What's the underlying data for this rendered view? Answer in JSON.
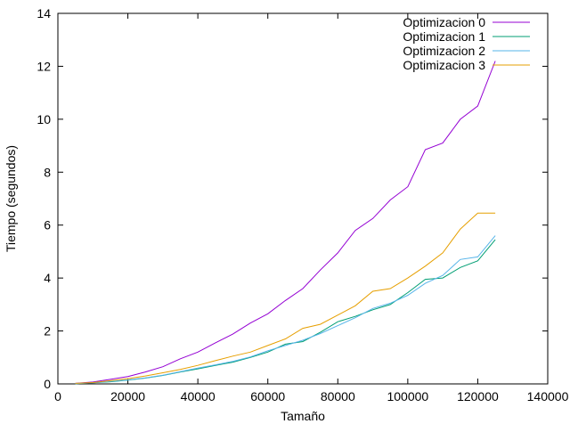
{
  "chart_data": {
    "type": "line",
    "xlabel": "Tamaño",
    "ylabel": "Tiempo (segundos)",
    "xlim": [
      0,
      140000
    ],
    "ylim": [
      0,
      14
    ],
    "x_ticks": [
      0,
      20000,
      40000,
      60000,
      80000,
      100000,
      120000,
      140000
    ],
    "y_ticks": [
      0,
      2,
      4,
      6,
      8,
      10,
      12,
      14
    ],
    "grid": false,
    "legend_position": "top-right",
    "x": [
      5000,
      10000,
      15000,
      20000,
      25000,
      30000,
      35000,
      40000,
      45000,
      50000,
      55000,
      60000,
      65000,
      70000,
      75000,
      80000,
      85000,
      90000,
      95000,
      100000,
      105000,
      110000,
      115000,
      120000,
      125000
    ],
    "series": [
      {
        "name": "Optimizacion 0",
        "color": "#9400d3",
        "values": [
          0.02,
          0.07,
          0.17,
          0.28,
          0.45,
          0.65,
          0.95,
          1.2,
          1.55,
          1.88,
          2.3,
          2.65,
          3.15,
          3.6,
          4.3,
          4.95,
          5.8,
          6.25,
          6.95,
          7.45,
          8.85,
          9.1,
          10.0,
          10.5,
          12.2
        ]
      },
      {
        "name": "Optimizacion 1",
        "color": "#009e73",
        "values": [
          0.01,
          0.04,
          0.08,
          0.14,
          0.22,
          0.32,
          0.45,
          0.57,
          0.7,
          0.82,
          1.0,
          1.2,
          1.5,
          1.6,
          1.95,
          2.35,
          2.55,
          2.8,
          3.0,
          3.45,
          3.95,
          4.0,
          4.4,
          4.65,
          5.45
        ]
      },
      {
        "name": "Optimizacion 2",
        "color": "#56b4e9",
        "values": [
          0.01,
          0.04,
          0.09,
          0.15,
          0.23,
          0.33,
          0.46,
          0.6,
          0.72,
          0.85,
          1.02,
          1.25,
          1.45,
          1.65,
          1.9,
          2.2,
          2.5,
          2.85,
          3.05,
          3.35,
          3.8,
          4.1,
          4.7,
          4.8,
          5.6
        ]
      },
      {
        "name": "Optimizacion 3",
        "color": "#e69f00",
        "values": [
          0.02,
          0.05,
          0.12,
          0.2,
          0.3,
          0.42,
          0.55,
          0.7,
          0.88,
          1.05,
          1.2,
          1.45,
          1.7,
          2.1,
          2.25,
          2.6,
          2.95,
          3.5,
          3.6,
          4.0,
          4.45,
          4.95,
          5.85,
          6.45,
          6.45
        ]
      }
    ]
  }
}
